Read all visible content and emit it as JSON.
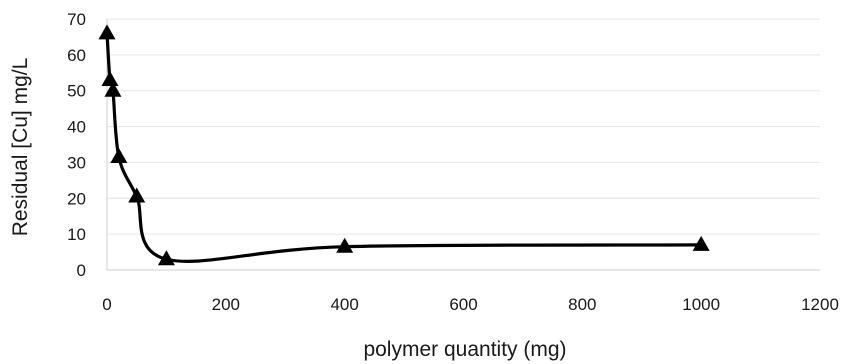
{
  "chart_data": {
    "type": "scatter",
    "xlabel": "polymer quantity (mg)",
    "ylabel": "Residual [Cu] mg/L",
    "xlim": [
      0,
      1200
    ],
    "ylim": [
      0,
      70
    ],
    "xticks": [
      0,
      200,
      400,
      600,
      800,
      1000,
      1200
    ],
    "yticks": [
      0,
      10,
      20,
      30,
      40,
      50,
      60,
      70
    ],
    "grid": true,
    "smooth_line": true,
    "marker": "triangle",
    "series": [
      {
        "color": "#000000",
        "points": [
          {
            "x": 0,
            "y": 66
          },
          {
            "x": 5,
            "y": 53
          },
          {
            "x": 10,
            "y": 50
          },
          {
            "x": 20,
            "y": 31.5
          },
          {
            "x": 50,
            "y": 20.5
          },
          {
            "x": 100,
            "y": 3
          },
          {
            "x": 400,
            "y": 6.5
          },
          {
            "x": 1000,
            "y": 7
          }
        ]
      }
    ]
  }
}
